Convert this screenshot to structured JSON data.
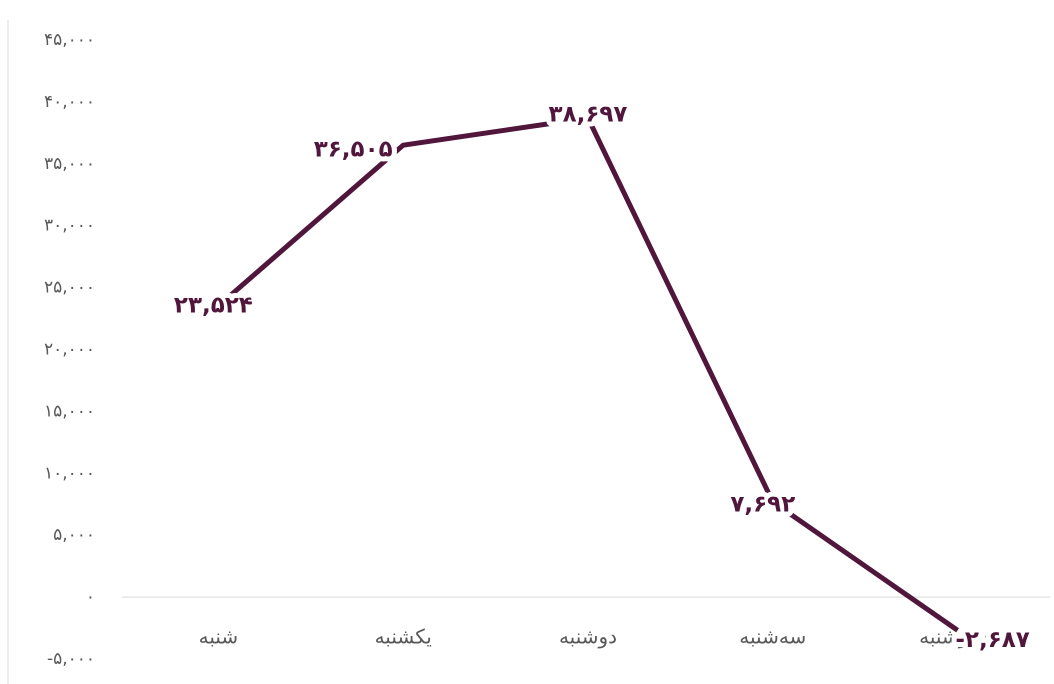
{
  "chart_data": {
    "type": "line",
    "categories": [
      "شنبه",
      "یکشنبه",
      "دوشنبه",
      "سه‌شنبه",
      "چهارشنبه"
    ],
    "values": [
      23524,
      36505,
      38697,
      7692,
      -2687
    ],
    "value_labels": [
      "۲۳,۵۲۴",
      "۳۶,۵۰۵",
      "۳۸,۶۹۷",
      "۷,۶۹۲",
      "-۲,۶۸۷"
    ],
    "color": "#50163c",
    "ylim": [
      -5000,
      45000
    ],
    "yticks": [
      {
        "value": -5000,
        "label": "-۵,۰۰۰"
      },
      {
        "value": 0,
        "label": "۰"
      },
      {
        "value": 5000,
        "label": "۵,۰۰۰"
      },
      {
        "value": 10000,
        "label": "۱۰,۰۰۰"
      },
      {
        "value": 15000,
        "label": "۱۵,۰۰۰"
      },
      {
        "value": 20000,
        "label": "۲۰,۰۰۰"
      },
      {
        "value": 25000,
        "label": "۲۵,۰۰۰"
      },
      {
        "value": 30000,
        "label": "۳۰,۰۰۰"
      },
      {
        "value": 35000,
        "label": "۳۵,۰۰۰"
      },
      {
        "value": 40000,
        "label": "۴۰,۰۰۰"
      },
      {
        "value": 45000,
        "label": "۴۵,۰۰۰"
      }
    ],
    "grid": false
  }
}
